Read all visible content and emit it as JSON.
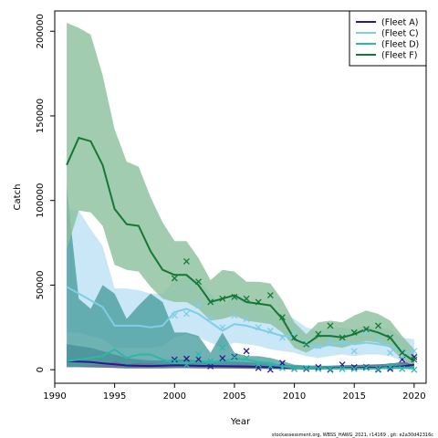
{
  "chart_data": {
    "type": "line",
    "xlabel": "Year",
    "ylabel": "Catch",
    "xlim": [
      1990,
      2021
    ],
    "ylim": [
      -8000,
      212000
    ],
    "xticks": [
      1990,
      1995,
      2000,
      2005,
      2010,
      2015,
      2020
    ],
    "yticks": [
      0,
      50000,
      100000,
      150000,
      200000
    ],
    "legend_position": "top-right",
    "footer": "stockassessment.org, WBSS_HAWG_2021, r14169 , git: e2a30d42316c",
    "years": [
      1991,
      1992,
      1993,
      1994,
      1995,
      1996,
      1997,
      1998,
      1999,
      2000,
      2001,
      2002,
      2003,
      2004,
      2005,
      2006,
      2007,
      2008,
      2009,
      2010,
      2011,
      2012,
      2013,
      2014,
      2015,
      2016,
      2017,
      2018,
      2019,
      2020
    ],
    "series": [
      {
        "name": "(Fleet A)",
        "color": "#2a1a8c",
        "band_color": "#3d5a80",
        "values": [
          5000,
          4800,
          4500,
          3800,
          3200,
          2500,
          2300,
          2200,
          2400,
          2600,
          2500,
          2300,
          2200,
          2100,
          2000,
          1900,
          1700,
          1500,
          1200,
          900,
          800,
          800,
          900,
          1000,
          1100,
          1200,
          1300,
          1500,
          2000,
          3000
        ],
        "lower": [
          1500,
          1500,
          1400,
          1200,
          1000,
          800,
          800,
          800,
          800,
          900,
          900,
          800,
          800,
          700,
          700,
          600,
          500,
          400,
          300,
          200,
          200,
          200,
          200,
          300,
          300,
          300,
          400,
          400,
          600,
          900
        ],
        "upper": [
          15000,
          14000,
          13000,
          11000,
          9000,
          7000,
          6000,
          5500,
          5500,
          6000,
          6000,
          5500,
          5300,
          5000,
          4800,
          4500,
          4000,
          3500,
          3000,
          2500,
          2200,
          2200,
          2400,
          2600,
          2800,
          3000,
          3200,
          3600,
          4500,
          6000
        ],
        "observed": [
          [
            2000,
            6000
          ],
          [
            2001,
            6500
          ],
          [
            2002,
            6200
          ],
          [
            2003,
            2000
          ],
          [
            2004,
            6800
          ],
          [
            2005,
            7500
          ],
          [
            2006,
            11000
          ],
          [
            2007,
            1000
          ],
          [
            2008,
            0
          ],
          [
            2009,
            4000
          ],
          [
            2010,
            500
          ],
          [
            2011,
            500
          ],
          [
            2012,
            1500
          ],
          [
            2013,
            0
          ],
          [
            2014,
            3000
          ],
          [
            2015,
            1500
          ],
          [
            2016,
            1500
          ],
          [
            2017,
            0
          ],
          [
            2018,
            500
          ],
          [
            2019,
            6000
          ],
          [
            2020,
            7500
          ]
        ]
      },
      {
        "name": "(Fleet C)",
        "color": "#7fcde6",
        "band_color": "#bfe3f5",
        "values": [
          49000,
          45000,
          41000,
          37000,
          26000,
          26000,
          26000,
          25000,
          26000,
          34000,
          36000,
          33000,
          28000,
          23000,
          27000,
          26000,
          24000,
          22000,
          20000,
          19000,
          15000,
          13000,
          15000,
          16000,
          15000,
          16000,
          15000,
          14000,
          11000,
          9000
        ],
        "lower": [
          22000,
          22000,
          20000,
          18000,
          13000,
          13000,
          13000,
          13000,
          14000,
          19000,
          21000,
          19000,
          16000,
          13000,
          16000,
          15000,
          14000,
          12000,
          11000,
          10000,
          8000,
          7000,
          8000,
          9000,
          8000,
          9000,
          9000,
          8000,
          5000,
          3000
        ],
        "upper": [
          95000,
          94000,
          83000,
          73000,
          48000,
          48000,
          47000,
          45000,
          45000,
          53000,
          55000,
          52000,
          45000,
          38000,
          44000,
          42000,
          38000,
          35000,
          33000,
          30000,
          25000,
          23000,
          25000,
          25000,
          24000,
          26000,
          25000,
          24000,
          19000,
          18000
        ],
        "observed": [
          [
            2000,
            32000
          ],
          [
            2001,
            33000
          ],
          [
            2002,
            38000
          ],
          [
            2003,
            31000
          ],
          [
            2004,
            25000
          ],
          [
            2005,
            32000
          ],
          [
            2006,
            30000
          ],
          [
            2007,
            25000
          ],
          [
            2008,
            23000
          ],
          [
            2009,
            19000
          ],
          [
            2010,
            22000
          ],
          [
            2011,
            16000
          ],
          [
            2012,
            14000
          ],
          [
            2013,
            17000
          ],
          [
            2014,
            16000
          ],
          [
            2015,
            11000
          ],
          [
            2016,
            22000
          ],
          [
            2017,
            18000
          ],
          [
            2018,
            10000
          ],
          [
            2019,
            8000
          ],
          [
            2020,
            11000
          ]
        ]
      },
      {
        "name": "(Fleet D)",
        "color": "#2eb8a4",
        "band_color": "#4a9fa0",
        "values": [
          5000,
          6000,
          7000,
          8000,
          12000,
          7000,
          9000,
          9000,
          6000,
          4000,
          4000,
          5000,
          4500,
          5000,
          6500,
          6000,
          4500,
          4000,
          2000,
          1000,
          900,
          800,
          700,
          700,
          700,
          700,
          700,
          1500,
          1200,
          800
        ],
        "lower": [
          1500,
          2000,
          2500,
          3000,
          5000,
          3000,
          4000,
          4000,
          3000,
          2000,
          2000,
          2500,
          2000,
          2500,
          3000,
          3000,
          2000,
          2000,
          1000,
          400,
          300,
          300,
          300,
          300,
          300,
          300,
          300,
          500,
          400,
          200
        ],
        "upper": [
          108000,
          42000,
          36000,
          50000,
          45000,
          30000,
          38000,
          45000,
          40000,
          22000,
          22000,
          20000,
          10000,
          22000,
          10000,
          8000,
          8000,
          7000,
          5000,
          3000,
          2500,
          2500,
          2200,
          2200,
          2200,
          2200,
          2200,
          4000,
          3500,
          2500
        ],
        "observed": [
          [
            2000,
            5000
          ],
          [
            2001,
            3000
          ],
          [
            2002,
            9000
          ],
          [
            2003,
            5000
          ],
          [
            2004,
            13000
          ],
          [
            2005,
            7000
          ],
          [
            2006,
            7000
          ],
          [
            2007,
            3000
          ],
          [
            2008,
            2000
          ],
          [
            2009,
            1000
          ],
          [
            2010,
            500
          ],
          [
            2011,
            1000
          ],
          [
            2012,
            500
          ],
          [
            2013,
            500
          ],
          [
            2014,
            500
          ],
          [
            2015,
            500
          ],
          [
            2016,
            1000
          ],
          [
            2017,
            500
          ],
          [
            2018,
            1500
          ],
          [
            2019,
            500
          ],
          [
            2020,
            0
          ]
        ]
      },
      {
        "name": "(Fleet F)",
        "color": "#137834",
        "band_color": "#8bbf9b",
        "values": [
          121000,
          137000,
          135000,
          121000,
          95000,
          86000,
          85000,
          70000,
          59000,
          56000,
          56000,
          50000,
          40000,
          42000,
          44000,
          40000,
          39000,
          38000,
          30000,
          18000,
          15000,
          20000,
          20000,
          19000,
          21000,
          24000,
          22000,
          19000,
          10000,
          5000
        ],
        "lower": [
          71000,
          94000,
          93000,
          85000,
          62000,
          59000,
          58000,
          49000,
          42000,
          40000,
          40000,
          36000,
          29000,
          30000,
          32000,
          29000,
          28000,
          27000,
          22000,
          13000,
          10000,
          14000,
          14000,
          13000,
          15000,
          17000,
          16000,
          13000,
          6000,
          2000
        ],
        "upper": [
          205000,
          202000,
          198000,
          174000,
          142000,
          123000,
          120000,
          102000,
          87000,
          76000,
          76000,
          66000,
          53000,
          59000,
          58000,
          52000,
          52000,
          51000,
          41000,
          28000,
          21000,
          28000,
          29000,
          28000,
          32000,
          35000,
          33000,
          29000,
          20000,
          12000
        ],
        "observed": [
          [
            2000,
            54000
          ],
          [
            2001,
            64000
          ],
          [
            2002,
            52000
          ],
          [
            2003,
            40000
          ],
          [
            2004,
            42000
          ],
          [
            2005,
            43000
          ],
          [
            2006,
            42000
          ],
          [
            2007,
            40000
          ],
          [
            2008,
            44000
          ],
          [
            2009,
            31000
          ],
          [
            2010,
            19000
          ],
          [
            2011,
            15000
          ],
          [
            2012,
            21000
          ],
          [
            2013,
            26000
          ],
          [
            2014,
            19000
          ],
          [
            2015,
            22000
          ],
          [
            2016,
            24000
          ],
          [
            2017,
            26000
          ],
          [
            2018,
            19000
          ],
          [
            2019,
            10000
          ],
          [
            2020,
            6000
          ]
        ]
      }
    ]
  }
}
